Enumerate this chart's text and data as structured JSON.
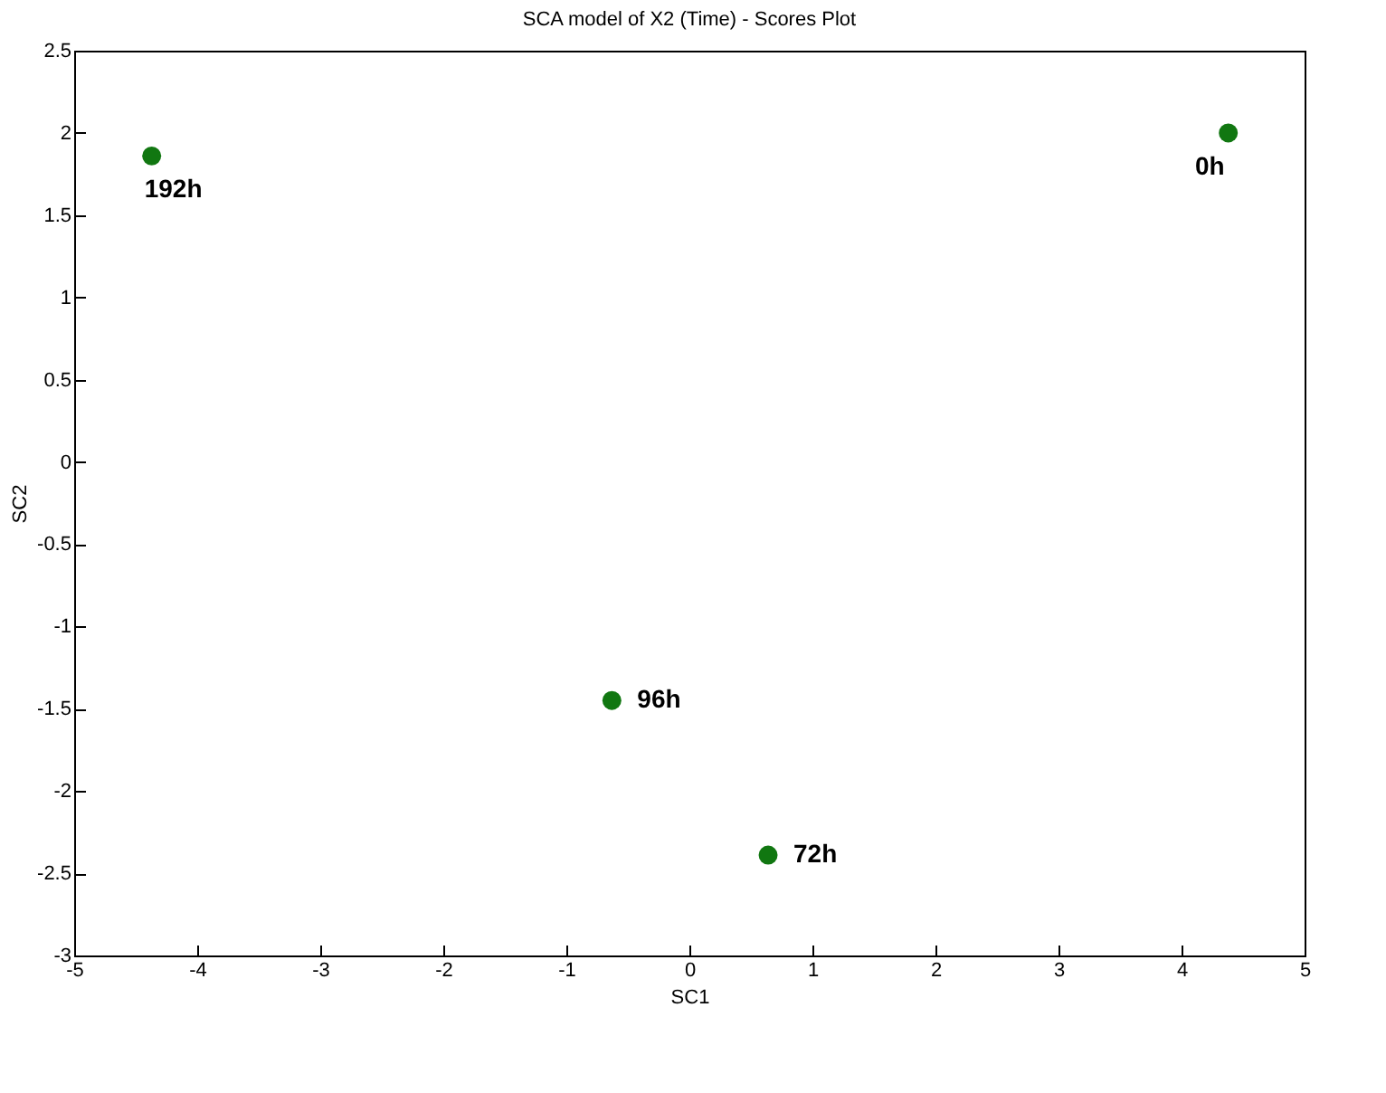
{
  "chart_data": {
    "type": "scatter",
    "title": "SCA model of X2 (Time) - Scores Plot",
    "xlabel": "SC1",
    "ylabel": "SC2",
    "x": [
      4.38,
      -4.37,
      0.64,
      -0.63
    ],
    "series": [
      {
        "color": "#117711",
        "values": [
          2.0,
          1.86,
          -2.39,
          -1.45
        ]
      }
    ],
    "annotations": [
      {
        "text": "0h",
        "x": 4.38,
        "y": 2.0
      },
      {
        "text": "192h",
        "x": -4.37,
        "y": 1.86
      },
      {
        "text": "72h",
        "x": 0.64,
        "y": -2.39
      },
      {
        "text": "96h",
        "x": -0.63,
        "y": -1.45
      }
    ],
    "xlim": [
      -5,
      5
    ],
    "xticks": [
      -5,
      -4,
      -3,
      -2,
      -1,
      0,
      1,
      2,
      3,
      4,
      5
    ],
    "ylim": [
      -3,
      2.5
    ],
    "yticks": [
      -3,
      -2.5,
      -2,
      -1.5,
      -1,
      -0.5,
      0,
      0.5,
      1,
      1.5,
      2,
      2.5
    ],
    "marker": "circle",
    "grid": false
  }
}
